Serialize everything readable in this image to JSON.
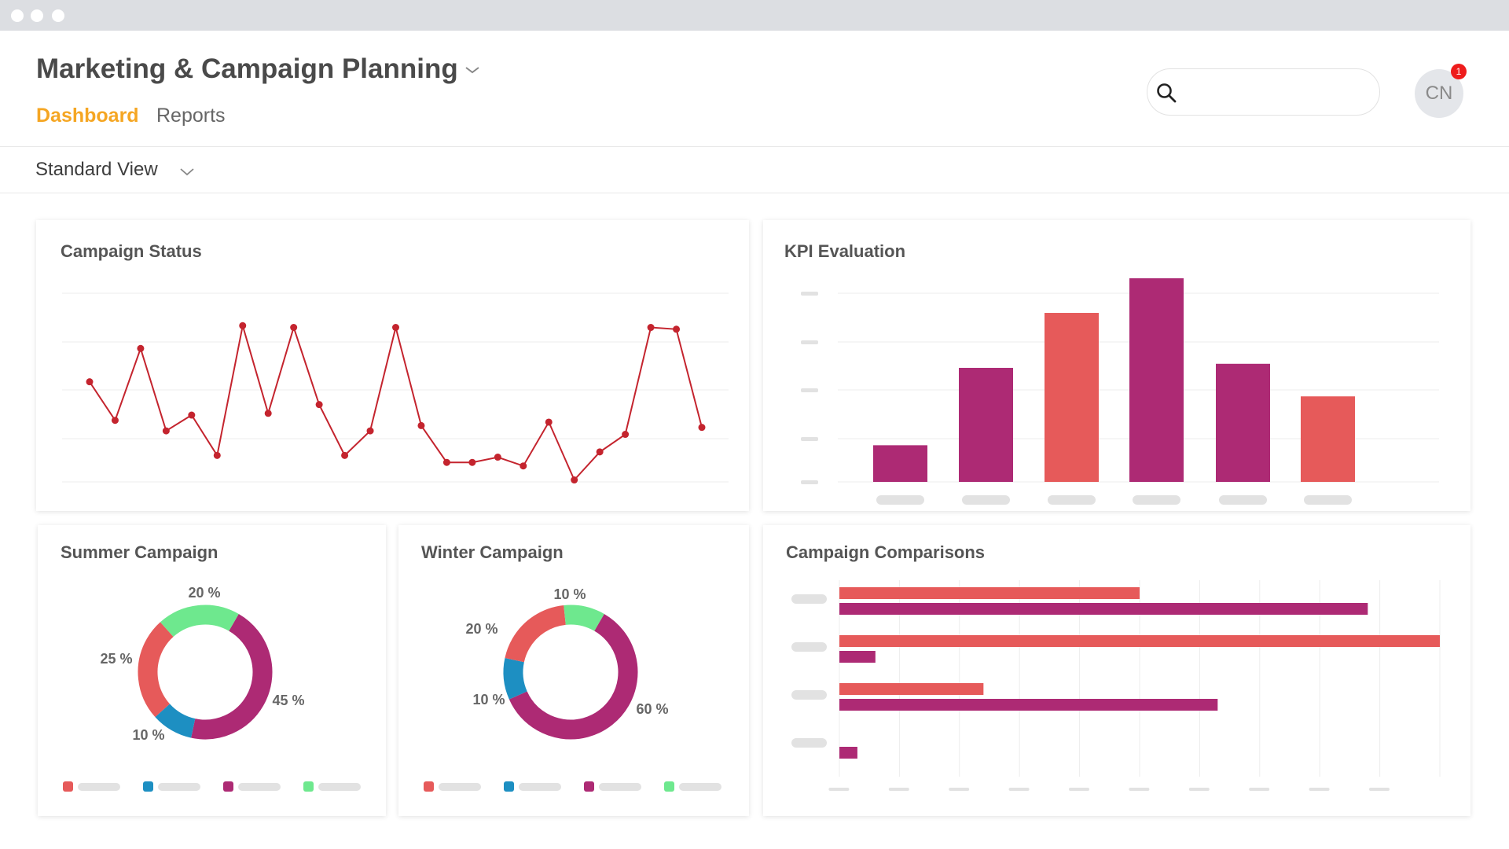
{
  "app": {
    "title": "Marketing & Campaign Planning",
    "tabs": [
      {
        "label": "Dashboard",
        "active": true
      },
      {
        "label": "Reports",
        "active": false
      }
    ]
  },
  "header": {
    "search": {
      "value": "",
      "placeholder": ""
    },
    "user": {
      "initials": "CN",
      "notification_count": "1"
    }
  },
  "view": {
    "selected": "Standard View"
  },
  "colors": {
    "accent": "#f5a623",
    "red": "#e65a5a",
    "line_red": "#c4242e",
    "magenta": "#ad2a74",
    "blue": "#1d8fc2",
    "green": "#6ee88e",
    "grid": "#ececec",
    "placeholder": "#e2e2e2"
  },
  "icons": {
    "search": "search-icon",
    "dropdown": "chevron-down-icon",
    "avatar": "user-avatar"
  },
  "chart_data": [
    {
      "id": "campaign_status",
      "type": "line",
      "title": "Campaign Status",
      "y": [
        58,
        36,
        77,
        30,
        39,
        16,
        90,
        40,
        89,
        45,
        16,
        30,
        89,
        33,
        12,
        12,
        15,
        10,
        35,
        2,
        18,
        28,
        89,
        88,
        32
      ],
      "ylim": [
        0,
        100
      ],
      "grid": true
    },
    {
      "id": "kpi_evaluation",
      "type": "bar",
      "title": "KPI Evaluation",
      "values": [
        18,
        56,
        83,
        100,
        58,
        42
      ],
      "colors": [
        "magenta",
        "magenta",
        "red",
        "magenta",
        "magenta",
        "red"
      ],
      "ylim": [
        0,
        100
      ],
      "grid": true
    },
    {
      "id": "summer_campaign",
      "type": "pie",
      "title": "Summer Campaign",
      "slices": [
        {
          "value": 45,
          "label": "45 %",
          "color": "magenta"
        },
        {
          "value": 10,
          "label": "10 %",
          "color": "blue"
        },
        {
          "value": 25,
          "label": "25 %",
          "color": "red"
        },
        {
          "value": 20,
          "label": "20 %",
          "color": "green"
        }
      ],
      "legend_colors": [
        "red",
        "blue",
        "magenta",
        "green"
      ]
    },
    {
      "id": "winter_campaign",
      "type": "pie",
      "title": "Winter Campaign",
      "slices": [
        {
          "value": 60,
          "label": "60 %",
          "color": "magenta"
        },
        {
          "value": 10,
          "label": "10 %",
          "color": "blue"
        },
        {
          "value": 20,
          "label": "20 %",
          "color": "red"
        },
        {
          "value": 10,
          "label": "10 %",
          "color": "green"
        }
      ],
      "legend_colors": [
        "red",
        "blue",
        "magenta",
        "green"
      ]
    },
    {
      "id": "campaign_comparisons",
      "type": "bar",
      "orientation": "horizontal",
      "title": "Campaign Comparisons",
      "series": [
        {
          "color": "red",
          "values": [
            50,
            100,
            24,
            null
          ]
        },
        {
          "color": "magenta",
          "values": [
            88,
            6,
            63,
            3
          ]
        }
      ],
      "xlim": [
        0,
        100
      ],
      "grid": true
    }
  ]
}
